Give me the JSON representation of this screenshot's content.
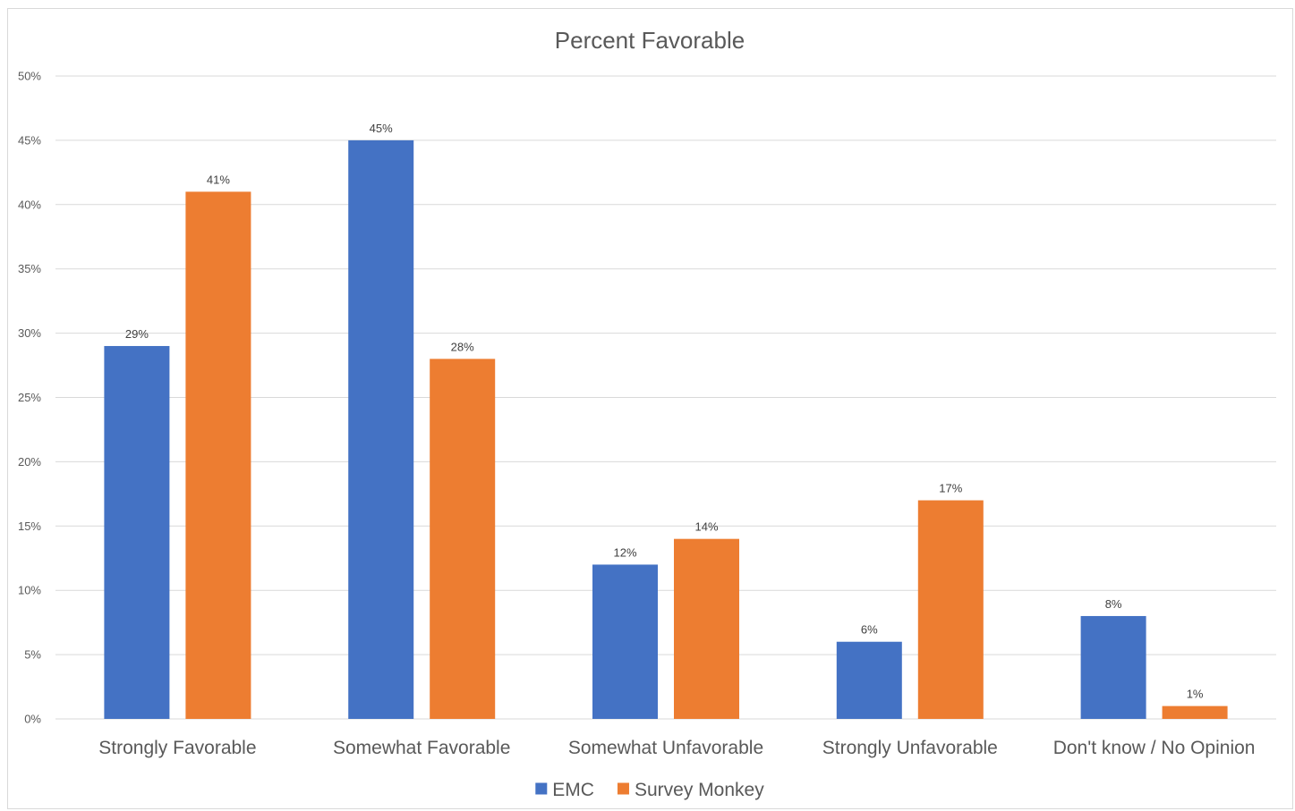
{
  "chart_data": {
    "type": "bar",
    "title": "Percent Favorable",
    "categories": [
      "Strongly Favorable",
      "Somewhat Favorable",
      "Somewhat Unfavorable",
      "Strongly Unfavorable",
      "Don't know / No Opinion"
    ],
    "series": [
      {
        "name": "EMC",
        "color": "#4472c4",
        "values": [
          29,
          45,
          12,
          6,
          8
        ],
        "labels": [
          "29%",
          "45%",
          "12%",
          "6%",
          "8%"
        ]
      },
      {
        "name": "Survey Monkey",
        "color": "#ed7d31",
        "values": [
          41,
          28,
          14,
          17,
          1
        ],
        "labels": [
          "41%",
          "28%",
          "14%",
          "17%",
          "1%"
        ]
      }
    ],
    "ylim": [
      0,
      50
    ],
    "yticks": [
      0,
      5,
      10,
      15,
      20,
      25,
      30,
      35,
      40,
      45,
      50
    ],
    "ytick_labels": [
      "0%",
      "5%",
      "10%",
      "15%",
      "20%",
      "25%",
      "30%",
      "35%",
      "40%",
      "45%",
      "50%"
    ],
    "xlabel": "",
    "ylabel": "",
    "grid": true,
    "legend": "bottom-center"
  }
}
